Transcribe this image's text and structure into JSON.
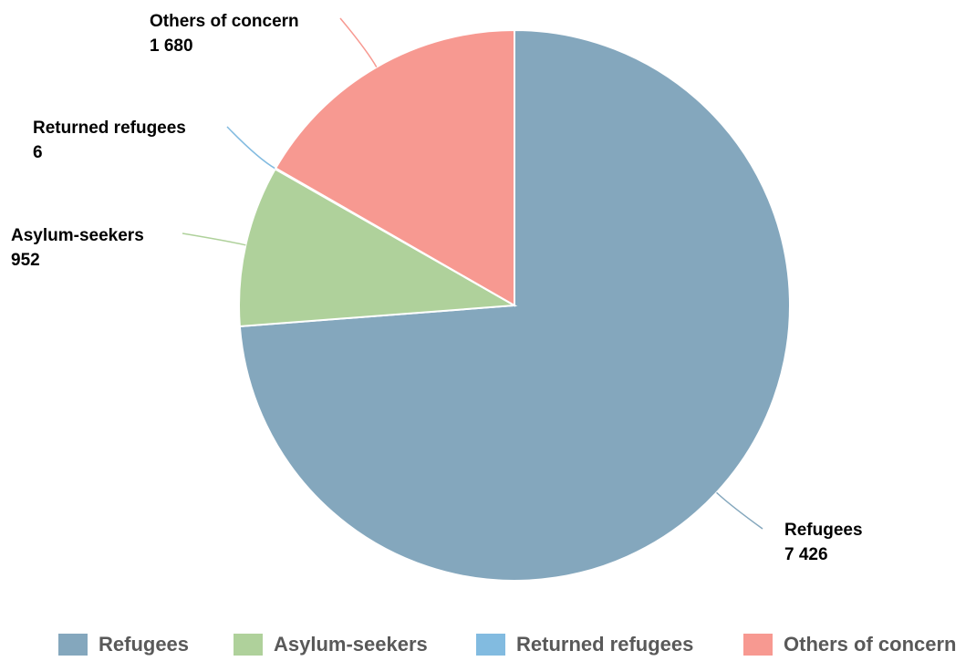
{
  "chart_data": {
    "type": "pie",
    "title": "",
    "slices": [
      {
        "label": "Refugees",
        "value": 7426,
        "value_label": "7 426",
        "color": "#84a7bd"
      },
      {
        "label": "Asylum-seekers",
        "value": 952,
        "value_label": "952",
        "color": "#afd19b"
      },
      {
        "label": "Returned refugees",
        "value": 6,
        "value_label": "6",
        "color": "#82bbe0"
      },
      {
        "label": "Others of concern",
        "value": 1680,
        "value_label": "1 680",
        "color": "#f79991"
      }
    ],
    "start_angle": "12 o'clock",
    "direction": "clockwise",
    "legend": {
      "position": "bottom"
    }
  }
}
